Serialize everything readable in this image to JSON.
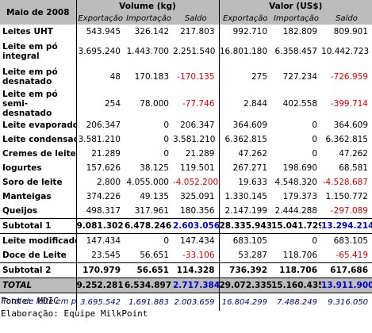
{
  "header": {
    "period": "Maio de 2008",
    "volume_group": "Volume (kg)",
    "value_group": "Valor (US$)",
    "sub_labels": [
      "Exportação",
      "Importação",
      "Saldo",
      "Exportação",
      "Importação",
      "Saldo"
    ]
  },
  "rows": [
    {
      "label": "Leites UHT",
      "v": [
        "543.945",
        "326.142",
        "217.803",
        "992.710",
        "182.809",
        "809.901"
      ]
    },
    {
      "label": "Leite em pó integral",
      "v": [
        "3.695.240",
        "1.443.700",
        "2.251.540",
        "16.801.180",
        "6.358.457",
        "10.442.723"
      ]
    },
    {
      "label": "Leite em pó desnatado",
      "v": [
        "48",
        "170.183",
        "-170.135",
        "275",
        "727.234",
        "-726.959"
      ]
    },
    {
      "label": "Leite em pó semi-desnatado",
      "v": [
        "254",
        "78.000",
        "-77.746",
        "2.844",
        "402.558",
        "-399.714"
      ]
    },
    {
      "label": "Leite evaporado",
      "v": [
        "206.347",
        "0",
        "206.347",
        "364.609",
        "0",
        "364.609"
      ]
    },
    {
      "label": "Leite condensado",
      "v": [
        "3.581.210",
        "0",
        "3.581.210",
        "6.362.815",
        "0",
        "6.362.815"
      ]
    },
    {
      "label": "Cremes de leite",
      "v": [
        "21.289",
        "0",
        "21.289",
        "47.262",
        "0",
        "47.262"
      ]
    },
    {
      "label": "Iogurtes",
      "v": [
        "157.626",
        "38.125",
        "119.501",
        "267.271",
        "198.690",
        "68.581"
      ]
    },
    {
      "label": "Soro de leite",
      "v": [
        "2.800",
        "4.055.000",
        "-4.052.200",
        "19.633",
        "4.548.320",
        "-4.528.687"
      ]
    },
    {
      "label": "Manteigas",
      "v": [
        "374.226",
        "49.135",
        "325.091",
        "1.330.145",
        "179.373",
        "1.150.772"
      ]
    },
    {
      "label": "Queijos",
      "v": [
        "498.317",
        "317.961",
        "180.356",
        "2.147.199",
        "2.444.288",
        "-297.089"
      ]
    }
  ],
  "subtotal1": {
    "label": "Subtotal 1",
    "v": [
      "9.081.302",
      "6.478.246",
      "2.603.056",
      "28.335.943",
      "15.041.729",
      "13.294.214"
    ]
  },
  "rows2": [
    {
      "label": "Leite modificado",
      "v": [
        "147.434",
        "0",
        "147.434",
        "683.105",
        "0",
        "683.105"
      ]
    },
    {
      "label": "Doce de Leite",
      "v": [
        "23.545",
        "56.651",
        "-33.106",
        "53.287",
        "118.706",
        "-65.419"
      ]
    }
  ],
  "subtotal2": {
    "label": "Subtotal 2",
    "v": [
      "170.979",
      "56.651",
      "114.328",
      "736.392",
      "118.706",
      "617.686"
    ]
  },
  "total": {
    "label": "TOTAL",
    "v": [
      "9.252.281",
      "6.534.897",
      "2.717.384",
      "29.072.335",
      "15.160.435",
      "13.911.900"
    ]
  },
  "note": {
    "label": "Total de leite em pó",
    "v": [
      "3.695.542",
      "1.691.883",
      "2.003.659",
      "16.804.299",
      "7.488.249",
      "9.316.050"
    ]
  },
  "footer": {
    "source": "Fonte: MDIC",
    "credit": "Elaboração: Equipe MilkPoint"
  },
  "colors": {
    "header_bg": "#bcbcbc",
    "negative": "#e00000",
    "balance_total": "#0000d0",
    "note": "#000080"
  }
}
